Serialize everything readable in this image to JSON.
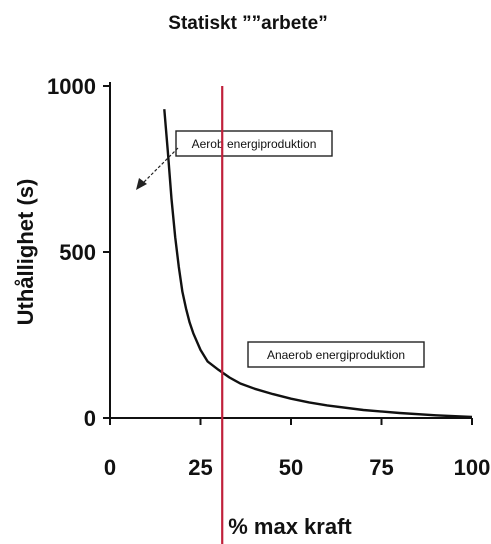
{
  "chart_data": {
    "type": "line",
    "title": "Statiskt ””arbete”",
    "xlabel": "% max kraft",
    "ylabel": "Uthållighet (s)",
    "xlim": [
      0,
      100
    ],
    "ylim": [
      0,
      1000
    ],
    "x_ticks": [
      "0",
      "25",
      "50",
      "75",
      "100"
    ],
    "y_ticks": [
      "0",
      "500",
      "1000"
    ],
    "grid": false,
    "series": [
      {
        "x": [
          15,
          16,
          17,
          18,
          19,
          20,
          21,
          22,
          23,
          25,
          27,
          30,
          33,
          36,
          40,
          45,
          50,
          55,
          60,
          70,
          80,
          90,
          100
        ],
        "y": [
          930,
          800,
          660,
          545,
          455,
          380,
          330,
          288,
          255,
          205,
          170,
          145,
          122,
          104,
          88,
          72,
          58,
          47,
          38,
          24,
          15,
          8,
          3
        ]
      }
    ],
    "reference_line": {
      "x": 31,
      "color": "#c0203a"
    },
    "annotations": [
      {
        "text": "Aerob energiproduktion",
        "x": 42,
        "y": 820
      },
      {
        "text": "Anaerob energiproduktion",
        "x": 88,
        "y": 200
      }
    ],
    "colors": {
      "curve": "#111111",
      "axis": "#111111",
      "reference_line": "#c0203a"
    }
  }
}
